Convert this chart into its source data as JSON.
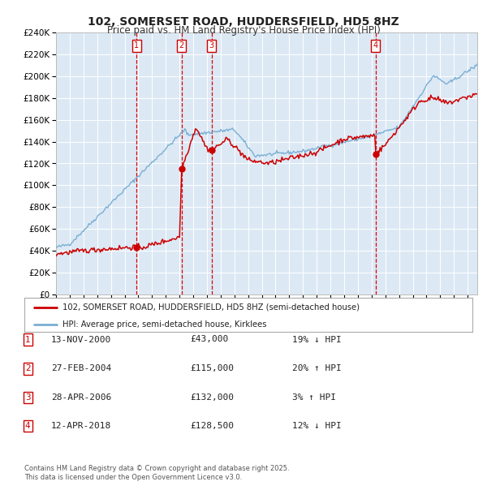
{
  "title": "102, SOMERSET ROAD, HUDDERSFIELD, HD5 8HZ",
  "subtitle": "Price paid vs. HM Land Registry's House Price Index (HPI)",
  "bg_color": "#dce9f5",
  "grid_color": "#ffffff",
  "red_line_color": "#cc0000",
  "blue_line_color": "#7aafd4",
  "vline_color": "#dd0000",
  "ylim": [
    0,
    240000
  ],
  "xlim": [
    1995.0,
    2025.7
  ],
  "legend_red": "102, SOMERSET ROAD, HUDDERSFIELD, HD5 8HZ (semi-detached house)",
  "legend_blue": "HPI: Average price, semi-detached house, Kirklees",
  "transactions": [
    {
      "num": 1,
      "date": "13-NOV-2000",
      "price": 43000,
      "pct": "19%",
      "dir": "↓",
      "x_year": 2000.87
    },
    {
      "num": 2,
      "date": "27-FEB-2004",
      "price": 115000,
      "pct": "20%",
      "dir": "↑",
      "x_year": 2004.16
    },
    {
      "num": 3,
      "date": "28-APR-2006",
      "price": 132000,
      "pct": "3%",
      "dir": "↑",
      "x_year": 2006.33
    },
    {
      "num": 4,
      "date": "12-APR-2018",
      "price": 128500,
      "pct": "12%",
      "dir": "↓",
      "x_year": 2018.28
    }
  ],
  "footer_line1": "Contains HM Land Registry data © Crown copyright and database right 2025.",
  "footer_line2": "This data is licensed under the Open Government Licence v3.0."
}
